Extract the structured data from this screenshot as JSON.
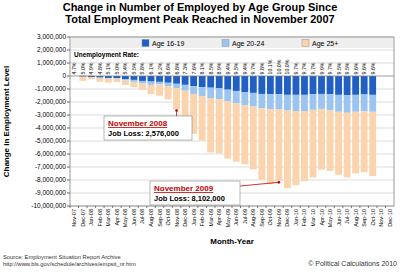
{
  "chart_data": {
    "type": "bar",
    "stacked": true,
    "grid": true,
    "legend": "top",
    "title": "Change in Number of Employed by Age Group Since Total Employment Peak Reached in November 2007",
    "x_label": "Month-Year",
    "y_label": "Change in Employment Level",
    "categories": [
      "Nov-07",
      "Dec-07",
      "Jan-08",
      "Feb-08",
      "Mar-08",
      "Apr-08",
      "May-08",
      "Jun-08",
      "Jul-08",
      "Aug-08",
      "Sep-08",
      "Oct-08",
      "Nov-08",
      "Dec-08",
      "Jan-09",
      "Feb-09",
      "Mar-09",
      "Apr-09",
      "May-09",
      "Jun-09",
      "Jul-09",
      "Aug-09",
      "Sep-09",
      "Oct-09",
      "Nov-09",
      "Dec-09",
      "Jan-10",
      "Feb-10",
      "Mar-10",
      "Apr-10",
      "May-10",
      "Jun-10",
      "Jul-10",
      "Aug-10",
      "Sep-10",
      "Oct-10",
      "Nov-10",
      "Dec-10"
    ],
    "series": [
      {
        "name": "Age 16-19",
        "color": "#2060c4",
        "values": [
          0,
          -50000,
          -80000,
          -120000,
          -150000,
          -180000,
          -250000,
          -300000,
          -380000,
          -430000,
          -450000,
          -520000,
          -600000,
          -680000,
          -780000,
          -850000,
          -900000,
          -950000,
          -1050000,
          -1150000,
          -1250000,
          -1300000,
          -1380000,
          -1400000,
          -1400000,
          -1450000,
          -1450000,
          -1450000,
          -1400000,
          -1380000,
          -1400000,
          -1450000,
          -1480000,
          -1450000,
          -1420000,
          -1450000,
          null,
          null
        ]
      },
      {
        "name": "Age 20-24",
        "color": "#9cc4f0",
        "values": [
          0,
          50000,
          30000,
          -20000,
          -50000,
          0,
          -100000,
          -150000,
          -200000,
          -250000,
          -200000,
          -250000,
          -350000,
          -450000,
          -600000,
          -700000,
          -800000,
          -850000,
          -900000,
          -950000,
          -1000000,
          -1050000,
          -1100000,
          -1150000,
          -1150000,
          -1200000,
          -1250000,
          -1250000,
          -1200000,
          -1150000,
          -1250000,
          -1300000,
          -1350000,
          -1300000,
          -1300000,
          -1300000,
          null,
          null
        ]
      },
      {
        "name": "Age 25+",
        "color": "#fbd3ac",
        "values": [
          0,
          -322000,
          -167000,
          -299000,
          -309000,
          -283000,
          -337000,
          -408000,
          -483000,
          -712000,
          -869000,
          -1023000,
          -1626000,
          -2096000,
          -3063000,
          -3405000,
          -4188000,
          -4139000,
          -4397000,
          -4486000,
          -4541000,
          -4834000,
          -5499000,
          -5770000,
          -5552000,
          -5977000,
          -5700000,
          -5400000,
          -5200000,
          -4670000,
          -4650000,
          -4850000,
          -4970000,
          -4750000,
          -4680000,
          -4950000,
          null,
          null
        ]
      }
    ],
    "ylim": [
      -10000000,
      3000000
    ],
    "yticks": [
      {
        "value": -10000000,
        "label": "-10,000,000"
      },
      {
        "value": -9000000,
        "label": "-9,000,000"
      },
      {
        "value": -8000000,
        "label": "-8,000,000"
      },
      {
        "value": -7000000,
        "label": "-7,000,000"
      },
      {
        "value": -6000000,
        "label": "-6,000,000"
      },
      {
        "value": -5000000,
        "label": "-5,000,000"
      },
      {
        "value": -4000000,
        "label": "-4,000,000"
      },
      {
        "value": -3000000,
        "label": "-3,000,000"
      },
      {
        "value": -2000000,
        "label": "-2,000,000"
      },
      {
        "value": -1000000,
        "label": "-1,000,000"
      },
      0,
      {
        "value": 1000000,
        "label": "1,000,000"
      },
      {
        "value": 2000000,
        "label": "2,000,000"
      },
      {
        "value": 3000000,
        "label": "3,000,000"
      }
    ],
    "unemployment_rate": {
      "title": "Unemployment Rate:",
      "labels": [
        "4.7%",
        "5.0%",
        "4.9%",
        "4.8%",
        "5.1%",
        "5.0%",
        "5.4%",
        "5.5%",
        "5.8%",
        "6.1%",
        "6.2%",
        "6.6%",
        "6.8%",
        "7.3%",
        "7.6%",
        "8.1%",
        "8.5%",
        "8.9%",
        "9.4%",
        "9.5%",
        "9.4%",
        "9.7%",
        "9.8%",
        "10.1%",
        "10.0%",
        "10.0%",
        "9.7%",
        "9.7%",
        "9.7%",
        "9.9%",
        "9.7%",
        "9.5%",
        "9.5%",
        "9.6%",
        "9.6%",
        "9.6%",
        null,
        null
      ]
    },
    "annotations": [
      {
        "x": "Nov-08",
        "title": "November 2008",
        "text": "Job Loss: 2,576,000"
      },
      {
        "x": "Nov-09",
        "title": "November 2009",
        "text": "Job Loss: 8,102,000"
      }
    ],
    "source": [
      "Source: Employment Situation Report Archive",
      "http://www.bls.gov/schedule/archives/empsit_nr.htm"
    ],
    "credit": "© Political Calculations 2010"
  }
}
